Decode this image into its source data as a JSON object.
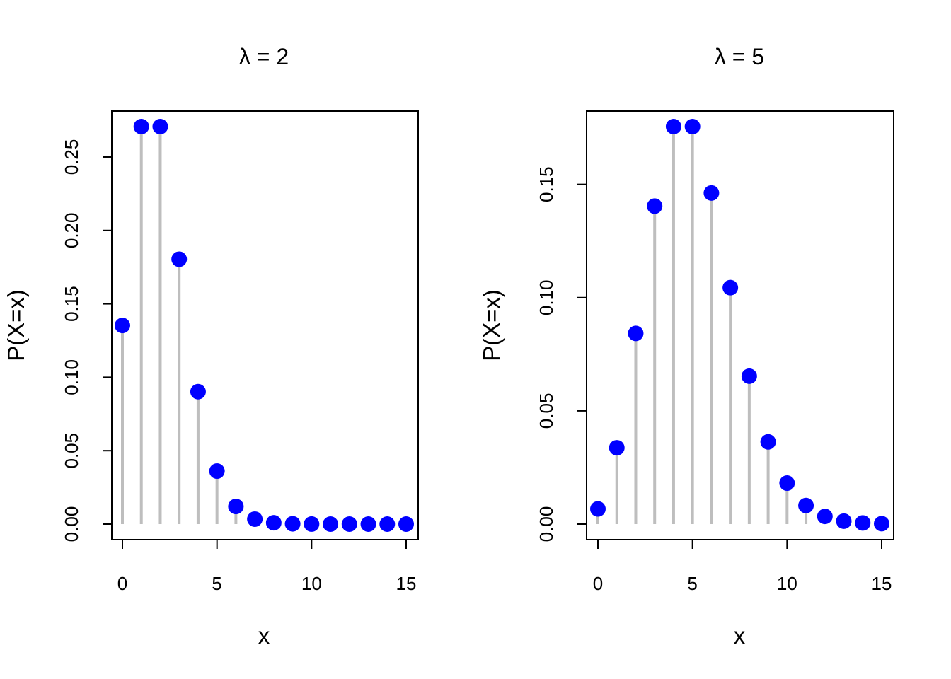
{
  "colors": {
    "point": "#0000FF",
    "stem": "#BEBEBE",
    "axis": "#000000"
  },
  "chart_data": [
    {
      "type": "scatter",
      "title": "λ = 2",
      "xlabel": "x",
      "ylabel": "P(X=x)",
      "xlim": [
        0,
        15
      ],
      "ylim": [
        0,
        0.2707
      ],
      "x_ticks": [
        0,
        5,
        10,
        15
      ],
      "x_tick_labels": [
        "0",
        "5",
        "10",
        "15"
      ],
      "y_ticks": [
        0,
        0.05,
        0.1,
        0.15,
        0.2,
        0.25
      ],
      "y_tick_labels": [
        "0.00",
        "0.05",
        "0.10",
        "0.15",
        "0.20",
        "0.25"
      ],
      "grid": false,
      "style": "vertical stems with filled points",
      "x": [
        0,
        1,
        2,
        3,
        4,
        5,
        6,
        7,
        8,
        9,
        10,
        11,
        12,
        13,
        14,
        15
      ],
      "y": [
        0.1353,
        0.2707,
        0.2707,
        0.1804,
        0.0902,
        0.0361,
        0.012,
        0.0034,
        0.0009,
        0.0002,
        4e-05,
        1e-05,
        0.0,
        0.0,
        0.0,
        0.0
      ]
    },
    {
      "type": "scatter",
      "title": "λ = 5",
      "xlabel": "x",
      "ylabel": "P(X=x)",
      "xlim": [
        0,
        15
      ],
      "ylim": [
        0,
        0.1755
      ],
      "x_ticks": [
        0,
        5,
        10,
        15
      ],
      "x_tick_labels": [
        "0",
        "5",
        "10",
        "15"
      ],
      "y_ticks": [
        0,
        0.05,
        0.1,
        0.15
      ],
      "y_tick_labels": [
        "0.00",
        "0.05",
        "0.10",
        "0.15"
      ],
      "grid": false,
      "style": "vertical stems with filled points",
      "x": [
        0,
        1,
        2,
        3,
        4,
        5,
        6,
        7,
        8,
        9,
        10,
        11,
        12,
        13,
        14,
        15
      ],
      "y": [
        0.0067,
        0.0337,
        0.0842,
        0.1404,
        0.1755,
        0.1755,
        0.1462,
        0.1044,
        0.0653,
        0.0363,
        0.0181,
        0.0082,
        0.0034,
        0.0013,
        0.0005,
        0.0002
      ]
    }
  ]
}
